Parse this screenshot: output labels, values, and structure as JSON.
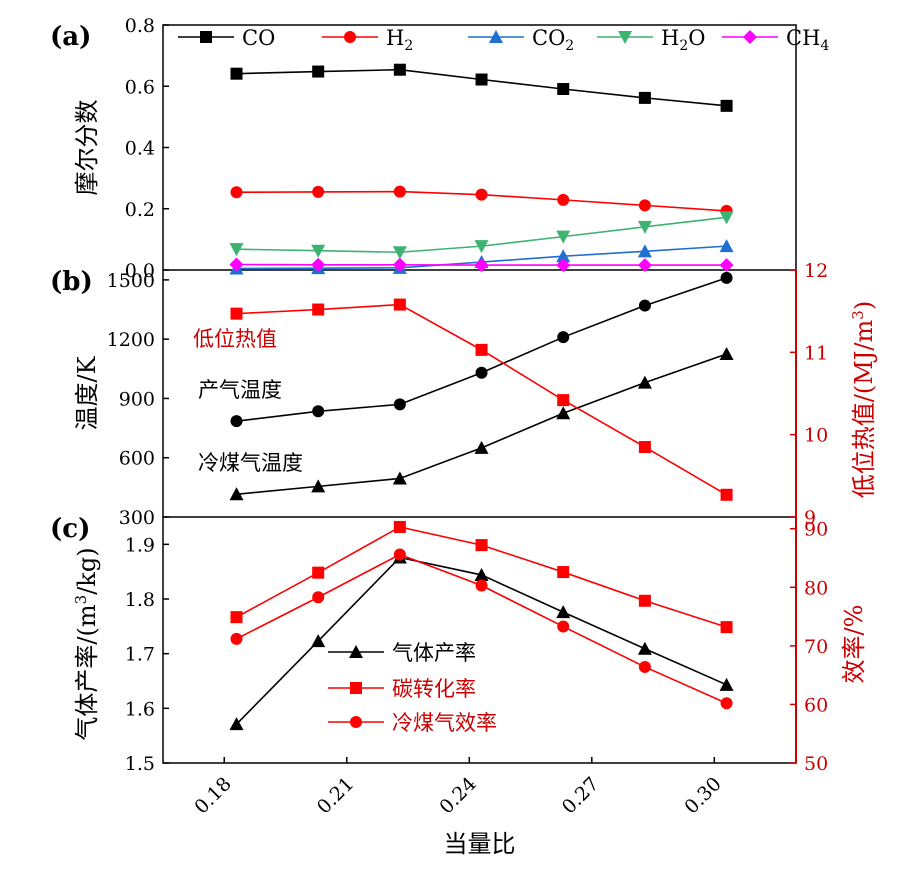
{
  "chart_data": [
    {
      "panel": "(a)",
      "type": "line",
      "x": [
        0.183,
        0.203,
        0.223,
        0.243,
        0.263,
        0.283,
        0.303
      ],
      "ylabel": "摩尔分数",
      "ylim": [
        0,
        0.8
      ],
      "yticks": [
        "0.0",
        "0.2",
        "0.4",
        "0.6",
        "0.8"
      ],
      "series": [
        {
          "name": "CO",
          "sub": "",
          "color": "#000000",
          "marker": "square",
          "values": [
            0.641,
            0.648,
            0.654,
            0.622,
            0.591,
            0.562,
            0.536
          ]
        },
        {
          "name": "H",
          "sub": "2",
          "color": "#ff0000",
          "marker": "circle",
          "values": [
            0.254,
            0.255,
            0.256,
            0.246,
            0.229,
            0.211,
            0.193
          ]
        },
        {
          "name": "CO",
          "sub": "2",
          "color": "#1f6fd0",
          "marker": "triangle-up",
          "values": [
            0.005,
            0.006,
            0.007,
            0.026,
            0.045,
            0.061,
            0.078
          ]
        },
        {
          "name": "H",
          "sub": "2",
          "tail": "O",
          "color": "#3cb371",
          "marker": "triangle-down",
          "values": [
            0.068,
            0.063,
            0.058,
            0.078,
            0.109,
            0.141,
            0.172
          ]
        },
        {
          "name": "CH",
          "sub": "4",
          "color": "#ff00ff",
          "marker": "diamond",
          "values": [
            0.018,
            0.017,
            0.017,
            0.016,
            0.016,
            0.016,
            0.016
          ]
        }
      ]
    },
    {
      "panel": "(b)",
      "type": "line",
      "x": [
        0.183,
        0.203,
        0.223,
        0.243,
        0.263,
        0.283,
        0.303
      ],
      "ylabel": "温度/K",
      "ylim": [
        300,
        1550
      ],
      "yticks": [
        "300",
        "600",
        "900",
        "1200",
        "1500"
      ],
      "y2label": "低位热值/(MJ/m",
      "y2label_sup": "3",
      "y2label_tail": ")",
      "y2lim": [
        9,
        12
      ],
      "y2ticks": [
        "9",
        "10",
        "11",
        "12"
      ],
      "annotations": [
        "低位热值",
        "产气温度",
        "冷煤气温度"
      ],
      "series": [
        {
          "name": "产气温度",
          "color": "#000000",
          "marker": "circle",
          "axis": "left",
          "values": [
            785,
            835,
            870,
            1030,
            1210,
            1370,
            1510
          ]
        },
        {
          "name": "冷煤气温度",
          "color": "#000000",
          "marker": "triangle-up",
          "axis": "left",
          "values": [
            415,
            455,
            495,
            650,
            825,
            980,
            1125
          ]
        },
        {
          "name": "低位热值",
          "color": "#ff0000",
          "marker": "square",
          "axis": "right",
          "values": [
            11.47,
            11.52,
            11.58,
            11.03,
            10.42,
            9.85,
            9.27
          ]
        }
      ]
    },
    {
      "panel": "(c)",
      "type": "line",
      "x": [
        0.183,
        0.203,
        0.223,
        0.243,
        0.263,
        0.283,
        0.303
      ],
      "xlabel": "当量比",
      "xticks": [
        "0.18",
        "0.21",
        "0.24",
        "0.27",
        "0.30"
      ],
      "ylabel": "气体产率/(m",
      "ylabel_sup": "3",
      "ylabel_tail": "/kg)",
      "ylim": [
        1.5,
        1.95
      ],
      "yticks": [
        "1.5",
        "1.6",
        "1.7",
        "1.8",
        "1.9"
      ],
      "y2label": "效率/%",
      "y2lim": [
        50,
        92
      ],
      "y2ticks": [
        "50",
        "60",
        "70",
        "80",
        "90"
      ],
      "series": [
        {
          "name": "气体产率",
          "color": "#000000",
          "marker": "triangle-up",
          "axis": "left",
          "values": [
            1.571,
            1.723,
            1.876,
            1.844,
            1.776,
            1.709,
            1.643
          ]
        },
        {
          "name": "碳转化率",
          "color": "#ff0000",
          "marker": "square",
          "axis": "right",
          "values": [
            74.9,
            82.5,
            90.3,
            87.2,
            82.6,
            77.7,
            73.2
          ]
        },
        {
          "name": "冷煤气效率",
          "color": "#ff0000",
          "marker": "circle",
          "axis": "right",
          "values": [
            71.2,
            78.3,
            85.6,
            80.3,
            73.3,
            66.4,
            60.2
          ]
        }
      ]
    }
  ]
}
